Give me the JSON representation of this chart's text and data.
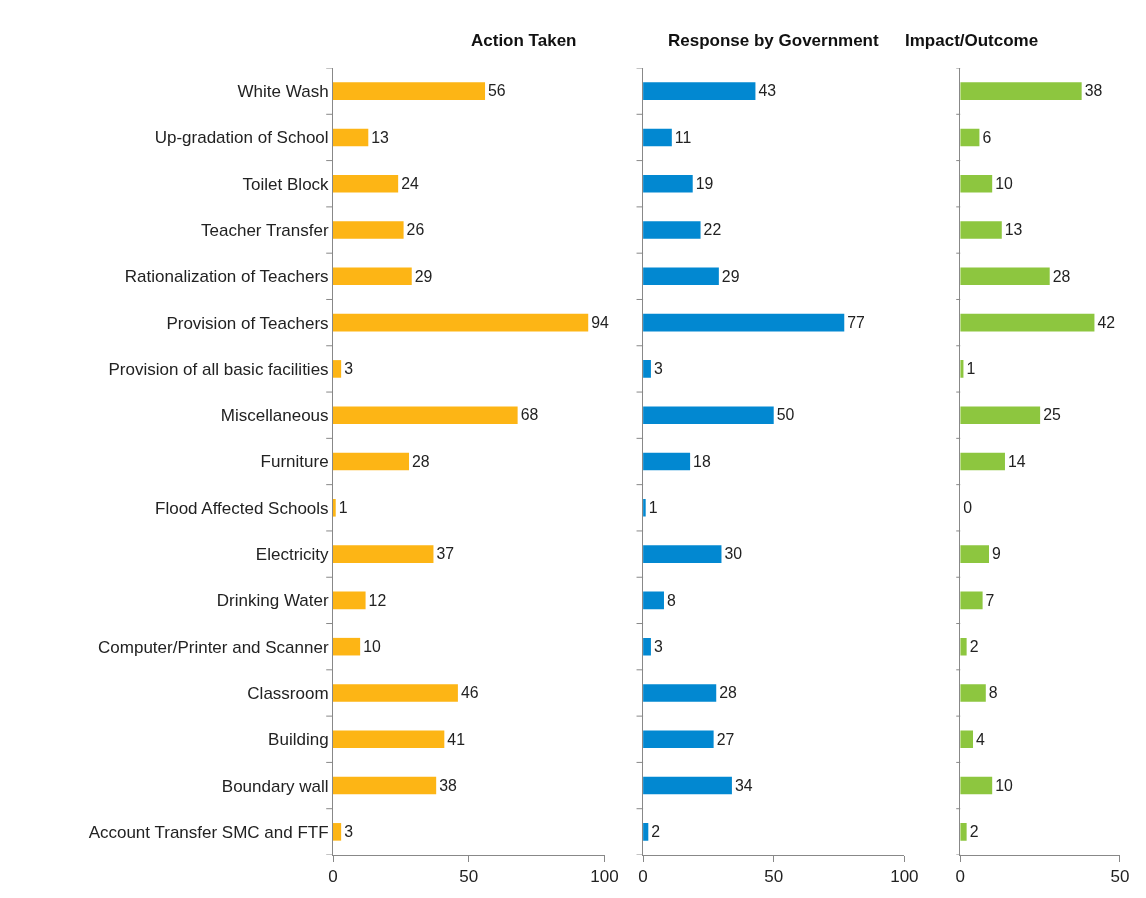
{
  "chart_data": [
    {
      "type": "bar",
      "orientation": "horizontal",
      "title": "Action Taken",
      "categories": [
        "White Wash",
        "Up-gradation of School",
        "Toilet Block",
        "Teacher Transfer",
        "Rationalization of Teachers",
        "Provision of Teachers",
        "Provision of all basic facilities",
        "Miscellaneous",
        "Furniture",
        "Flood Affected Schools",
        "Electricity",
        "Drinking Water",
        "Computer/Printer and Scanner",
        "Classroom",
        "Building",
        "Boundary wall",
        "Account Transfer SMC and FTF"
      ],
      "values": [
        56,
        13,
        24,
        26,
        29,
        94,
        3,
        68,
        28,
        1,
        37,
        12,
        10,
        46,
        41,
        38,
        3
      ],
      "color": "#fdb515",
      "xlim": [
        0,
        100
      ],
      "xticks": [
        0,
        50,
        100
      ],
      "data_labels": true
    },
    {
      "type": "bar",
      "orientation": "horizontal",
      "title": "Response by Government",
      "categories": [
        null,
        null,
        null,
        null,
        null,
        null,
        null,
        null,
        null,
        null,
        null,
        null,
        null,
        null,
        null,
        null,
        null
      ],
      "values": [
        43,
        11,
        19,
        22,
        29,
        77,
        3,
        50,
        18,
        1,
        30,
        8,
        3,
        28,
        27,
        34,
        2
      ],
      "color": "#0288d1",
      "xlim": [
        0,
        100
      ],
      "xticks": [
        0,
        50,
        100
      ],
      "data_labels": true,
      "tick_labels": "x"
    },
    {
      "type": "bar",
      "orientation": "horizontal",
      "title": "Impact/Outcome",
      "categories": [
        null,
        null,
        null,
        null,
        null,
        null,
        null,
        null,
        null,
        null,
        null,
        null,
        null,
        null,
        null,
        null,
        null
      ],
      "values": [
        38,
        6,
        10,
        13,
        28,
        42,
        1,
        25,
        14,
        0,
        9,
        7,
        2,
        8,
        4,
        10,
        2
      ],
      "color": "#8dc63f",
      "xlim": [
        0,
        50
      ],
      "xticks": [
        0,
        50
      ],
      "data_labels": true,
      "tick_labels": "x"
    }
  ]
}
